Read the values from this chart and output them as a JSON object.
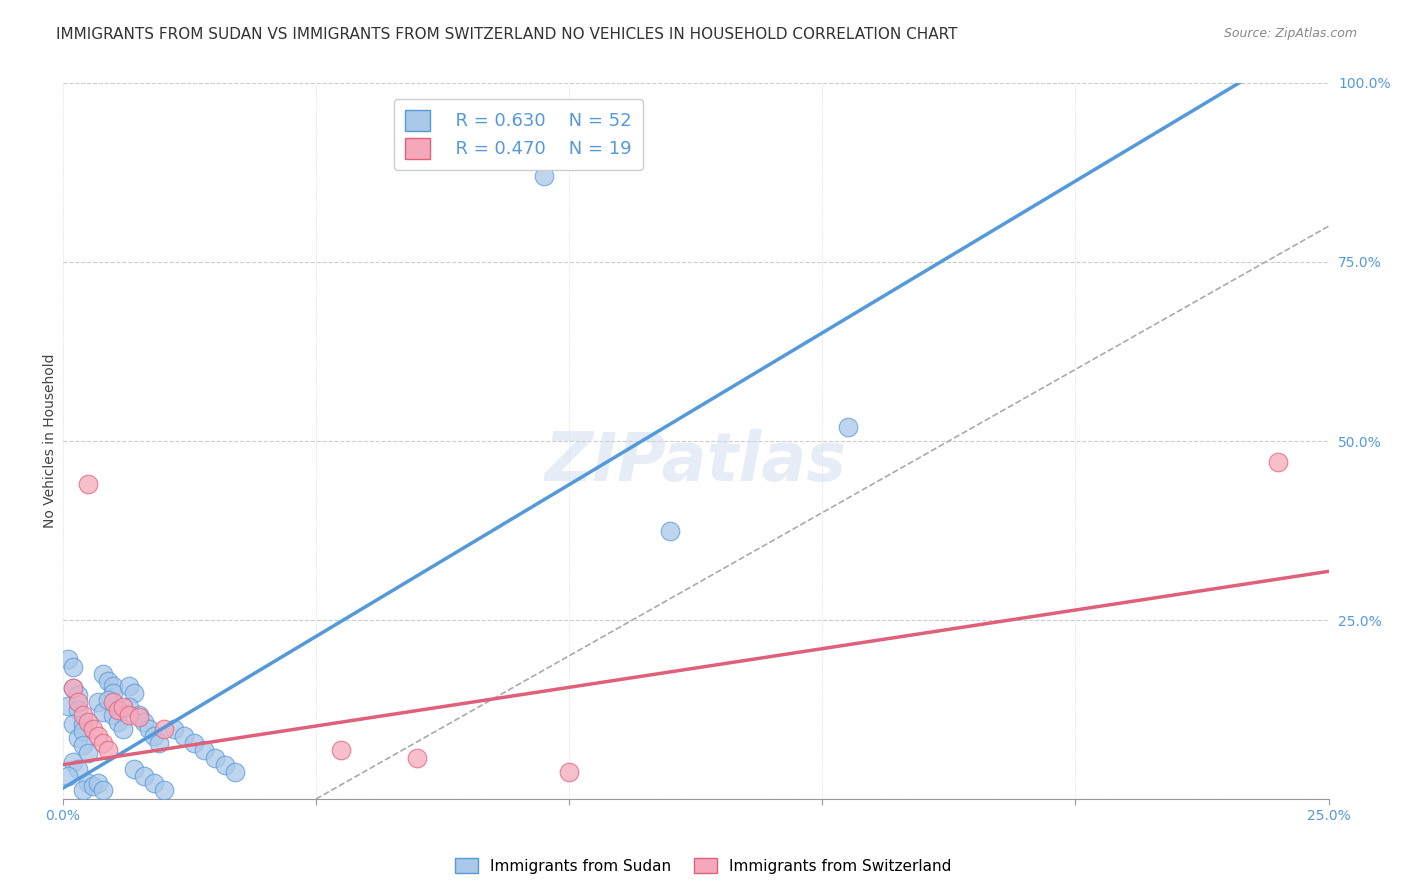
{
  "title": "IMMIGRANTS FROM SUDAN VS IMMIGRANTS FROM SWITZERLAND NO VEHICLES IN HOUSEHOLD CORRELATION CHART",
  "source": "Source: ZipAtlas.com",
  "ylabel": "No Vehicles in Household",
  "xlim": [
    0.0,
    0.25
  ],
  "ylim": [
    0.0,
    1.0
  ],
  "xticks": [
    0.0,
    0.05,
    0.1,
    0.15,
    0.2,
    0.25
  ],
  "xtick_labels": [
    "0.0%",
    "",
    "",
    "",
    "",
    "25.0%"
  ],
  "ytick_labels": [
    "",
    "25.0%",
    "50.0%",
    "75.0%",
    "100.0%"
  ],
  "yticks": [
    0.0,
    0.25,
    0.5,
    0.75,
    1.0
  ],
  "sudan_color": "#aac8e8",
  "switzerland_color": "#f5a8bc",
  "sudan_line_color": "#5599dd",
  "switzerland_line_color": "#e0607a",
  "trendline_color": "#b8b8b8",
  "legend_R_sudan": "R = 0.630",
  "legend_N_sudan": "N = 52",
  "legend_R_swiss": "R = 0.470",
  "legend_N_swiss": "N = 19",
  "background_color": "#ffffff",
  "grid_color": "#cccccc",
  "watermark": "ZIPatlas",
  "sudan_points": [
    [
      0.001,
      0.195
    ],
    [
      0.002,
      0.185
    ],
    [
      0.002,
      0.155
    ],
    [
      0.001,
      0.13
    ],
    [
      0.003,
      0.145
    ],
    [
      0.003,
      0.125
    ],
    [
      0.002,
      0.105
    ],
    [
      0.004,
      0.105
    ],
    [
      0.003,
      0.085
    ],
    [
      0.004,
      0.095
    ],
    [
      0.004,
      0.075
    ],
    [
      0.005,
      0.065
    ],
    [
      0.002,
      0.052
    ],
    [
      0.003,
      0.042
    ],
    [
      0.001,
      0.032
    ],
    [
      0.005,
      0.022
    ],
    [
      0.004,
      0.012
    ],
    [
      0.006,
      0.018
    ],
    [
      0.007,
      0.022
    ],
    [
      0.008,
      0.012
    ],
    [
      0.008,
      0.175
    ],
    [
      0.009,
      0.165
    ],
    [
      0.01,
      0.158
    ],
    [
      0.01,
      0.148
    ],
    [
      0.007,
      0.135
    ],
    [
      0.008,
      0.122
    ],
    [
      0.009,
      0.138
    ],
    [
      0.01,
      0.118
    ],
    [
      0.011,
      0.108
    ],
    [
      0.012,
      0.098
    ],
    [
      0.013,
      0.158
    ],
    [
      0.014,
      0.148
    ],
    [
      0.013,
      0.128
    ],
    [
      0.015,
      0.118
    ],
    [
      0.016,
      0.108
    ],
    [
      0.017,
      0.098
    ],
    [
      0.018,
      0.088
    ],
    [
      0.019,
      0.078
    ],
    [
      0.014,
      0.042
    ],
    [
      0.016,
      0.032
    ],
    [
      0.018,
      0.022
    ],
    [
      0.02,
      0.012
    ],
    [
      0.095,
      0.87
    ],
    [
      0.12,
      0.375
    ],
    [
      0.155,
      0.52
    ],
    [
      0.022,
      0.098
    ],
    [
      0.024,
      0.088
    ],
    [
      0.026,
      0.078
    ],
    [
      0.028,
      0.068
    ],
    [
      0.03,
      0.058
    ],
    [
      0.032,
      0.048
    ],
    [
      0.034,
      0.038
    ]
  ],
  "switzerland_points": [
    [
      0.005,
      0.44
    ],
    [
      0.002,
      0.155
    ],
    [
      0.003,
      0.135
    ],
    [
      0.004,
      0.118
    ],
    [
      0.005,
      0.108
    ],
    [
      0.006,
      0.098
    ],
    [
      0.007,
      0.088
    ],
    [
      0.008,
      0.078
    ],
    [
      0.009,
      0.068
    ],
    [
      0.01,
      0.135
    ],
    [
      0.011,
      0.125
    ],
    [
      0.012,
      0.128
    ],
    [
      0.013,
      0.118
    ],
    [
      0.015,
      0.115
    ],
    [
      0.02,
      0.098
    ],
    [
      0.24,
      0.47
    ],
    [
      0.1,
      0.038
    ],
    [
      0.055,
      0.068
    ],
    [
      0.07,
      0.058
    ]
  ],
  "title_fontsize": 11,
  "axis_label_fontsize": 10,
  "tick_fontsize": 10,
  "legend_fontsize": 13,
  "watermark_fontsize": 48,
  "source_fontsize": 9
}
